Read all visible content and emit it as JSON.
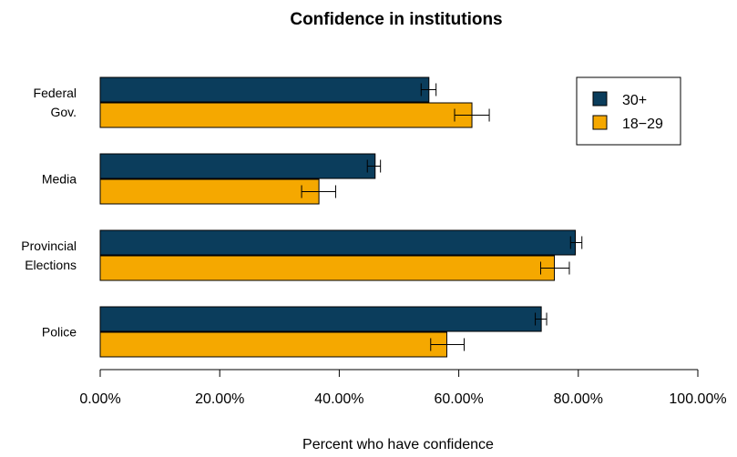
{
  "chart_data": {
    "type": "bar",
    "orientation": "horizontal",
    "title": "Confidence in institutions",
    "xlabel": "Percent who have confidence",
    "ylabel": "",
    "xlim": [
      0,
      1
    ],
    "xticks": [
      0,
      0.2,
      0.4,
      0.6,
      0.8,
      1.0
    ],
    "xtick_labels": [
      "0.00%",
      "20.00%",
      "40.00%",
      "60.00%",
      "80.00%",
      "100.00%"
    ],
    "categories": [
      {
        "lines": [
          "Federal",
          "Gov."
        ]
      },
      {
        "lines": [
          "Media"
        ]
      },
      {
        "lines": [
          "Provincial",
          "Elections"
        ]
      },
      {
        "lines": [
          "Police"
        ]
      }
    ],
    "series": [
      {
        "name": "30+",
        "color": "#0b3d5c",
        "values": [
          0.55,
          0.46,
          0.795,
          0.738
        ],
        "error_low": [
          0.537,
          0.447,
          0.787,
          0.728
        ],
        "error_high": [
          0.562,
          0.469,
          0.806,
          0.747
        ]
      },
      {
        "name": "18-29",
        "color": "#f5a800",
        "values": [
          0.622,
          0.366,
          0.76,
          0.58
        ],
        "error_low": [
          0.593,
          0.337,
          0.737,
          0.553
        ],
        "error_high": [
          0.651,
          0.394,
          0.785,
          0.609
        ]
      }
    ],
    "legend": {
      "position": "top-right",
      "entries": [
        "30+",
        "18−29"
      ]
    },
    "grid": false
  }
}
